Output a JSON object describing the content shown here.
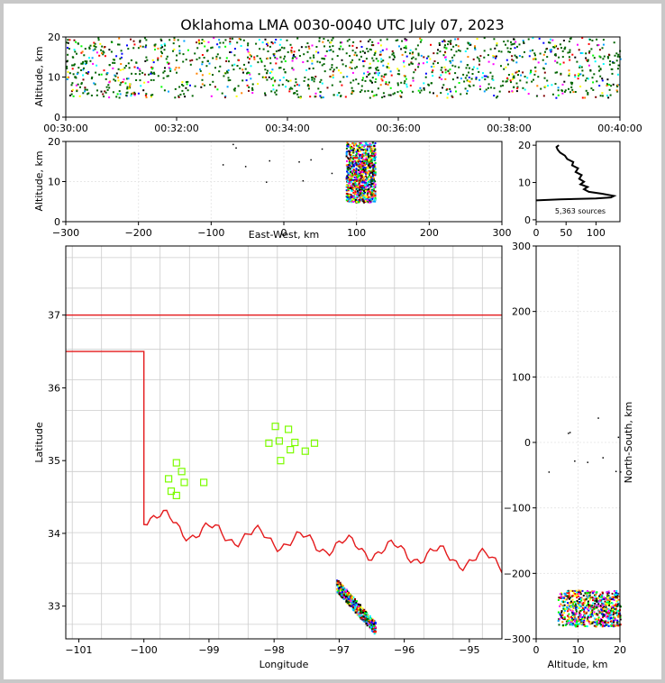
{
  "chart_data": [
    {
      "id": "time-height",
      "type": "scatter",
      "title": "Oklahoma LMA 0030-0040 UTC July 07, 2023",
      "ylabel": "Altitude, km",
      "x_tick_labels": [
        "00:30:00",
        "00:32:00",
        "00:34:00",
        "00:36:00",
        "00:38:00",
        "00:40:00"
      ],
      "xlim_minutes": [
        30,
        40
      ],
      "ylim": [
        0,
        20
      ],
      "yticks": [
        0,
        10,
        20
      ],
      "altitude_band_km": [
        5,
        20
      ]
    },
    {
      "id": "east-west-altitude",
      "type": "scatter",
      "xlabel": "East-West, km",
      "ylabel": "Altitude, km",
      "xlim": [
        -300,
        300
      ],
      "xticks": [
        -300,
        -200,
        -100,
        0,
        100,
        200,
        300
      ],
      "ylim": [
        0,
        20
      ],
      "yticks": [
        0,
        10,
        20
      ],
      "grid": true,
      "cluster": {
        "x_range": [
          85,
          125
        ],
        "y_range": [
          5,
          20
        ]
      }
    },
    {
      "id": "altitude-histogram",
      "type": "line",
      "annotation": "5,363 sources",
      "xlim": [
        0,
        140
      ],
      "xticks": [
        0,
        50,
        100
      ],
      "ylim": [
        -0.5,
        21
      ],
      "yticks": [
        0,
        10,
        20
      ],
      "profile": [
        [
          0,
          5.2
        ],
        [
          40,
          5.5
        ],
        [
          100,
          5.7
        ],
        [
          125,
          6.0
        ],
        [
          130,
          6.4
        ],
        [
          110,
          7.0
        ],
        [
          88,
          7.5
        ],
        [
          80,
          8.2
        ],
        [
          86,
          8.8
        ],
        [
          74,
          9.5
        ],
        [
          80,
          10.2
        ],
        [
          72,
          11.0
        ],
        [
          76,
          12.0
        ],
        [
          66,
          12.8
        ],
        [
          70,
          13.8
        ],
        [
          60,
          14.6
        ],
        [
          62,
          15.5
        ],
        [
          52,
          16.3
        ],
        [
          48,
          17.2
        ],
        [
          40,
          18.0
        ],
        [
          36,
          18.8
        ],
        [
          34,
          19.5
        ],
        [
          38,
          20.0
        ]
      ]
    },
    {
      "id": "plan-view",
      "type": "map",
      "xlabel": "Longitude",
      "ylabel": "Latitude",
      "xlim": [
        -101.2,
        -94.5
      ],
      "ylim": [
        32.55,
        37.95
      ],
      "xticks": [
        -101,
        -100,
        -99,
        -98,
        -97,
        -96,
        -95
      ],
      "yticks": [
        33,
        34,
        35,
        36,
        37
      ],
      "stations": [
        [
          -99.5,
          34.97
        ],
        [
          -99.42,
          34.85
        ],
        [
          -99.62,
          34.75
        ],
        [
          -99.38,
          34.7
        ],
        [
          -99.08,
          34.7
        ],
        [
          -99.58,
          34.58
        ],
        [
          -99.5,
          34.52
        ],
        [
          -97.98,
          35.47
        ],
        [
          -97.78,
          35.43
        ],
        [
          -98.08,
          35.24
        ],
        [
          -97.92,
          35.27
        ],
        [
          -97.68,
          35.25
        ],
        [
          -97.38,
          35.24
        ],
        [
          -97.75,
          35.15
        ],
        [
          -97.52,
          35.13
        ],
        [
          -97.9,
          35.0
        ]
      ],
      "lightning_cluster": {
        "lon_range": [
          -97.05,
          -96.45
        ],
        "lat_range": [
          32.7,
          33.3
        ]
      }
    },
    {
      "id": "altitude-north-south",
      "type": "scatter",
      "xlabel": "Altitude, km",
      "ylabel": "North-South, km",
      "xlim": [
        0,
        20
      ],
      "xticks": [
        0,
        10,
        20
      ],
      "ylim": [
        -300,
        300
      ],
      "yticks": [
        -300,
        -200,
        -100,
        0,
        100,
        200,
        300
      ],
      "grid": true,
      "cluster": {
        "x_range": [
          5,
          20
        ],
        "y_range": [
          -280,
          -225
        ]
      }
    }
  ],
  "colors": {
    "state_border": "#e41a1c",
    "county_lines": "#c8c8c8",
    "station_marker": "#7cfc00",
    "palette": [
      "#0000ff",
      "#00a0ff",
      "#00ffff",
      "#00ff00",
      "#006400",
      "#ffff00",
      "#ff8000",
      "#ff0000",
      "#800000",
      "#ff00ff",
      "#000000"
    ]
  }
}
